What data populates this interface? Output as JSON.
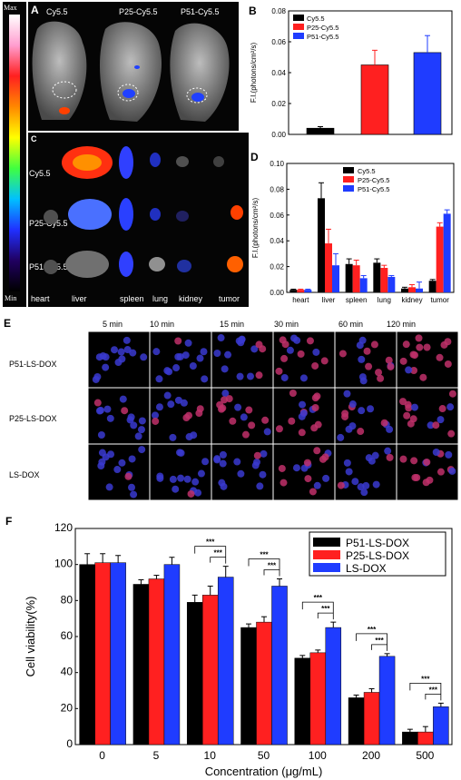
{
  "panels": {
    "A": {
      "label": "A",
      "colorbar": {
        "max": "Max",
        "min": "Min"
      },
      "groups": [
        "Cy5.5",
        "P25-Cy5.5",
        "P51-Cy5.5"
      ]
    },
    "C": {
      "label": "C",
      "rows": [
        "Cy5.5",
        "P25-Cy5.5",
        "P51-Cy5.5"
      ],
      "organs": [
        "heart",
        "liver",
        "spleen",
        "lung",
        "kidney",
        "tumor"
      ]
    },
    "E": {
      "label": "E",
      "times": [
        "5 min",
        "10 min",
        "15 min",
        "30 min",
        "60 min",
        "120 min"
      ],
      "rows": [
        "P51-LS-DOX",
        "P25-LS-DOX",
        "LS-DOX"
      ]
    }
  },
  "chart_data": [
    {
      "id": "B",
      "label": "B",
      "type": "bar",
      "ylabel": "F.I.(photons/cm²/s)",
      "ylim": [
        0,
        0.08
      ],
      "yticks": [
        "0.00",
        "0.02",
        "0.04",
        "0.06",
        "0.08"
      ],
      "series": [
        {
          "name": "Cy5.5",
          "color": "#000000",
          "value": 0.004,
          "err": 0.001
        },
        {
          "name": "P25-Cy5.5",
          "color": "#ff2020",
          "value": 0.045,
          "err": 0.0095
        },
        {
          "name": "P51-Cy5.5",
          "color": "#1f3cff",
          "value": 0.053,
          "err": 0.011
        }
      ]
    },
    {
      "id": "D",
      "label": "D",
      "type": "bar",
      "ylabel": "F.I.(photons/cm²/s)",
      "ylim": [
        0,
        0.1
      ],
      "yticks": [
        "0.00",
        "0.02",
        "0.04",
        "0.06",
        "0.08",
        "0.10"
      ],
      "categories": [
        "heart",
        "liver",
        "spleen",
        "lung",
        "kidney",
        "tumor"
      ],
      "series": [
        {
          "name": "Cy5.5",
          "color": "#000000",
          "values": [
            0.002,
            0.073,
            0.022,
            0.023,
            0.003,
            0.009
          ],
          "errs": [
            0.0005,
            0.012,
            0.004,
            0.003,
            0.001,
            0.001
          ]
        },
        {
          "name": "P25-Cy5.5",
          "color": "#ff2020",
          "values": [
            0.002,
            0.038,
            0.021,
            0.019,
            0.004,
            0.051
          ],
          "errs": [
            0.0005,
            0.011,
            0.004,
            0.002,
            0.002,
            0.003
          ]
        },
        {
          "name": "P51-Cy5.5",
          "color": "#1f3cff",
          "values": [
            0.002,
            0.021,
            0.011,
            0.012,
            0.003,
            0.061
          ],
          "errs": [
            0.0005,
            0.009,
            0.002,
            0.001,
            0.005,
            0.003
          ]
        }
      ]
    },
    {
      "id": "F",
      "label": "F",
      "type": "bar",
      "xlabel": "Concentration (μg/mL)",
      "ylabel": "Cell viability(%)",
      "ylim": [
        0,
        120
      ],
      "yticks": [
        "0",
        "20",
        "40",
        "60",
        "80",
        "100",
        "120"
      ],
      "categories": [
        "0",
        "5",
        "10",
        "50",
        "100",
        "200",
        "500"
      ],
      "series": [
        {
          "name": "P51-LS-DOX",
          "color": "#000000",
          "values": [
            100,
            89,
            79,
            65,
            48,
            26,
            7
          ],
          "errs": [
            6,
            2.5,
            4,
            2,
            1.5,
            1.5,
            1.5
          ]
        },
        {
          "name": "P25-LS-DOX",
          "color": "#ff2020",
          "values": [
            101,
            92,
            83,
            68,
            51,
            29,
            7
          ],
          "errs": [
            5,
            2,
            5,
            3,
            1.5,
            2,
            3
          ]
        },
        {
          "name": "LS-DOX",
          "color": "#1f3cff",
          "values": [
            101,
            100,
            93,
            88,
            65,
            49,
            21
          ],
          "errs": [
            4,
            4,
            6,
            4,
            3,
            1.5,
            2
          ]
        }
      ],
      "significance": "***"
    }
  ]
}
